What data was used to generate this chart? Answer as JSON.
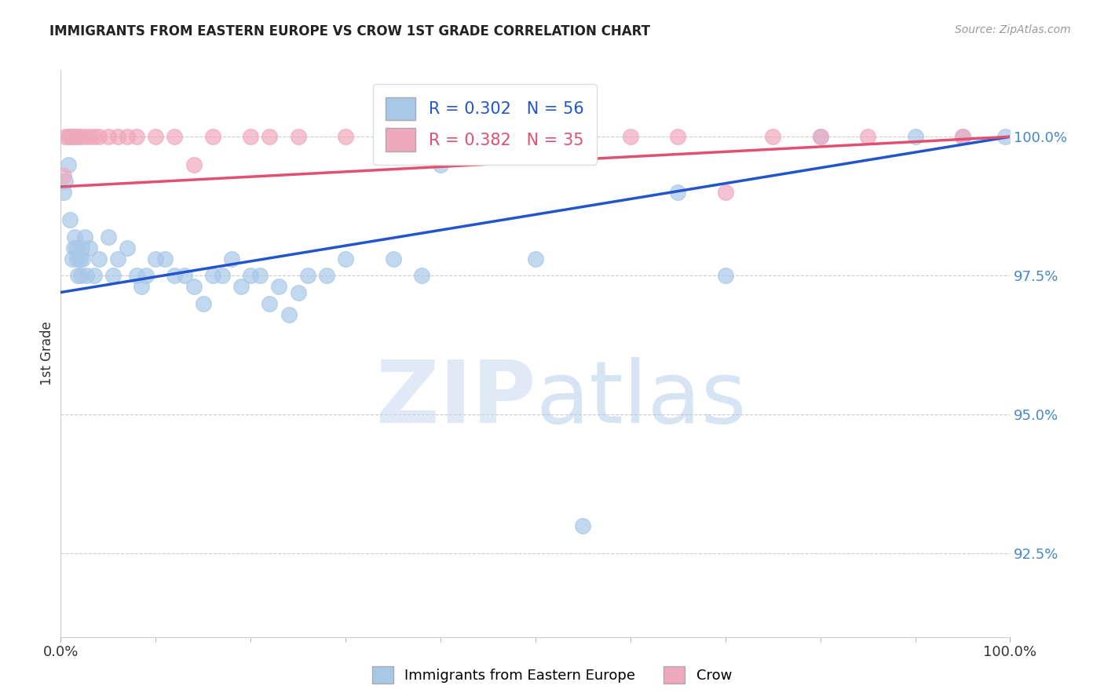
{
  "title": "IMMIGRANTS FROM EASTERN EUROPE VS CROW 1ST GRADE CORRELATION CHART",
  "source": "Source: ZipAtlas.com",
  "ylabel": "1st Grade",
  "blue_label": "Immigrants from Eastern Europe",
  "pink_label": "Crow",
  "blue_R": 0.302,
  "blue_N": 56,
  "pink_R": 0.382,
  "pink_N": 35,
  "blue_color": "#a8c8e8",
  "pink_color": "#f0a8be",
  "blue_line_color": "#2255cc",
  "pink_line_color": "#e05070",
  "blue_trendline_x0": 0,
  "blue_trendline_x1": 100,
  "blue_trendline_y0": 97.2,
  "blue_trendline_y1": 100.0,
  "pink_trendline_x0": 0,
  "pink_trendline_x1": 100,
  "pink_trendline_y0": 99.1,
  "pink_trendline_y1": 100.0,
  "y_ticks": [
    92.5,
    95.0,
    97.5,
    100.0
  ],
  "x_lim": [
    0.0,
    100.0
  ],
  "y_lim": [
    91.0,
    101.2
  ],
  "blue_scatter_x": [
    0.3,
    0.5,
    0.8,
    1.0,
    1.2,
    1.4,
    1.5,
    1.6,
    1.7,
    1.8,
    2.0,
    2.1,
    2.2,
    2.3,
    2.5,
    2.7,
    3.0,
    3.5,
    4.0,
    5.0,
    5.5,
    6.0,
    7.0,
    8.0,
    8.5,
    9.0,
    10.0,
    11.0,
    12.0,
    13.0,
    14.0,
    15.0,
    16.0,
    17.0,
    18.0,
    19.0,
    20.0,
    21.0,
    22.0,
    23.0,
    24.0,
    25.0,
    26.0,
    28.0,
    30.0,
    35.0,
    38.0,
    40.0,
    50.0,
    55.0,
    65.0,
    70.0,
    80.0,
    90.0,
    95.0,
    99.5
  ],
  "blue_scatter_y": [
    99.0,
    99.2,
    99.5,
    98.5,
    97.8,
    98.0,
    98.2,
    98.0,
    97.8,
    97.5,
    97.8,
    97.5,
    98.0,
    97.8,
    98.2,
    97.5,
    98.0,
    97.5,
    97.8,
    98.2,
    97.5,
    97.8,
    98.0,
    97.5,
    97.3,
    97.5,
    97.8,
    97.8,
    97.5,
    97.5,
    97.3,
    97.0,
    97.5,
    97.5,
    97.8,
    97.3,
    97.5,
    97.5,
    97.0,
    97.3,
    96.8,
    97.2,
    97.5,
    97.5,
    97.8,
    97.8,
    97.5,
    99.5,
    97.8,
    93.0,
    99.0,
    97.5,
    100.0,
    100.0,
    100.0,
    100.0
  ],
  "pink_scatter_x": [
    0.3,
    0.5,
    0.8,
    1.0,
    1.2,
    1.4,
    1.6,
    1.8,
    2.0,
    2.5,
    3.0,
    3.5,
    4.0,
    5.0,
    6.0,
    7.0,
    8.0,
    10.0,
    12.0,
    14.0,
    16.0,
    20.0,
    22.0,
    25.0,
    30.0,
    35.0,
    45.0,
    50.0,
    60.0,
    65.0,
    70.0,
    75.0,
    80.0,
    85.0,
    95.0
  ],
  "pink_scatter_y": [
    99.3,
    100.0,
    100.0,
    100.0,
    100.0,
    100.0,
    100.0,
    100.0,
    100.0,
    100.0,
    100.0,
    100.0,
    100.0,
    100.0,
    100.0,
    100.0,
    100.0,
    100.0,
    100.0,
    99.5,
    100.0,
    100.0,
    100.0,
    100.0,
    100.0,
    100.0,
    100.0,
    100.0,
    100.0,
    100.0,
    99.0,
    100.0,
    100.0,
    100.0,
    100.0
  ],
  "watermark_zip": "ZIP",
  "watermark_atlas": "atlas",
  "grid_color": "#cccccc",
  "tick_label_color": "#4488cc",
  "background_color": "#ffffff"
}
